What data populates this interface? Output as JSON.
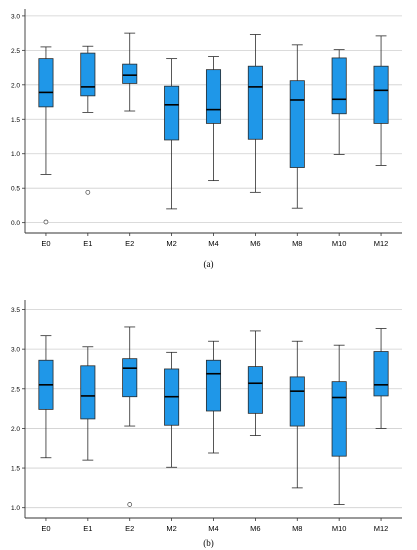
{
  "colors": {
    "box_fill": "#1f97e8",
    "box_stroke": "#2b2b2b",
    "grid": "#cfcfcf",
    "axis": "#333333"
  },
  "chart_data": [
    {
      "type": "box",
      "panel_label": "(a)",
      "categories": [
        "E0",
        "E1",
        "E2",
        "M2",
        "M4",
        "M6",
        "M8",
        "M10",
        "M12"
      ],
      "ylim": [
        -0.15,
        3.1
      ],
      "yticks": [
        "0.0",
        "0.5",
        "1.0",
        "1.5",
        "2.0",
        "2.5",
        "3.0"
      ],
      "ytick_values": [
        0,
        0.5,
        1.0,
        1.5,
        2.0,
        2.5,
        3.0
      ],
      "grid": true,
      "boxes": [
        {
          "min": 0.7,
          "q1": 1.68,
          "median": 1.89,
          "q3": 2.38,
          "max": 2.55,
          "outliers": [
            0.01
          ]
        },
        {
          "min": 1.6,
          "q1": 1.84,
          "median": 1.97,
          "q3": 2.46,
          "max": 2.56,
          "outliers": [
            0.44
          ]
        },
        {
          "min": 1.62,
          "q1": 2.02,
          "median": 2.14,
          "q3": 2.3,
          "max": 2.75,
          "outliers": []
        },
        {
          "min": 0.2,
          "q1": 1.2,
          "median": 1.71,
          "q3": 1.98,
          "max": 2.38,
          "outliers": []
        },
        {
          "min": 0.61,
          "q1": 1.44,
          "median": 1.64,
          "q3": 2.22,
          "max": 2.41,
          "outliers": []
        },
        {
          "min": 0.44,
          "q1": 1.21,
          "median": 1.97,
          "q3": 2.27,
          "max": 2.73,
          "outliers": []
        },
        {
          "min": 0.21,
          "q1": 0.8,
          "median": 1.78,
          "q3": 2.06,
          "max": 2.58,
          "outliers": []
        },
        {
          "min": 0.99,
          "q1": 1.58,
          "median": 1.79,
          "q3": 2.39,
          "max": 2.51,
          "outliers": []
        },
        {
          "min": 0.83,
          "q1": 1.44,
          "median": 1.92,
          "q3": 2.27,
          "max": 2.71,
          "outliers": []
        }
      ]
    },
    {
      "type": "box",
      "panel_label": "(b)",
      "categories": [
        "E0",
        "E1",
        "E2",
        "M2",
        "M4",
        "M6",
        "M8",
        "M10",
        "M12"
      ],
      "ylim": [
        0.87,
        3.62
      ],
      "yticks": [
        "1.0",
        "1.5",
        "2.0",
        "2.5",
        "3.0",
        "3.5"
      ],
      "ytick_values": [
        1.0,
        1.5,
        2.0,
        2.5,
        3.0,
        3.5
      ],
      "grid": true,
      "boxes": [
        {
          "min": 1.63,
          "q1": 2.24,
          "median": 2.55,
          "q3": 2.86,
          "max": 3.17,
          "outliers": []
        },
        {
          "min": 1.6,
          "q1": 2.12,
          "median": 2.41,
          "q3": 2.79,
          "max": 3.03,
          "outliers": []
        },
        {
          "min": 2.03,
          "q1": 2.4,
          "median": 2.76,
          "q3": 2.88,
          "max": 3.28,
          "outliers": [
            1.04
          ]
        },
        {
          "min": 1.51,
          "q1": 2.04,
          "median": 2.4,
          "q3": 2.75,
          "max": 2.96,
          "outliers": []
        },
        {
          "min": 1.69,
          "q1": 2.22,
          "median": 2.69,
          "q3": 2.86,
          "max": 3.1,
          "outliers": []
        },
        {
          "min": 1.91,
          "q1": 2.19,
          "median": 2.57,
          "q3": 2.78,
          "max": 3.23,
          "outliers": []
        },
        {
          "min": 1.25,
          "q1": 2.03,
          "median": 2.47,
          "q3": 2.65,
          "max": 3.1,
          "outliers": []
        },
        {
          "min": 1.04,
          "q1": 1.65,
          "median": 2.39,
          "q3": 2.59,
          "max": 3.05,
          "outliers": []
        },
        {
          "min": 2.0,
          "q1": 2.41,
          "median": 2.55,
          "q3": 2.97,
          "max": 3.26,
          "outliers": []
        }
      ]
    }
  ]
}
